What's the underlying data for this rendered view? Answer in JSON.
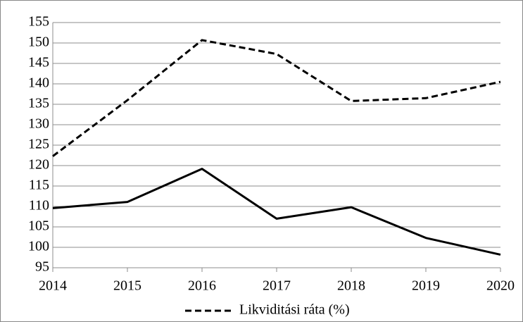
{
  "chart_data": {
    "type": "line",
    "categories": [
      "2014",
      "2015",
      "2016",
      "2017",
      "2018",
      "2019",
      "2020"
    ],
    "series": [
      {
        "name": "Likviditási ráta (%)",
        "color": "#000000",
        "dashed": true,
        "values": [
          122.3,
          136,
          150.7,
          147.3,
          135.8,
          136.5,
          140.5
        ]
      },
      {
        "color": "#000000",
        "dashed": false,
        "values": [
          109.6,
          111.1,
          119.2,
          107,
          109.8,
          102.3,
          98.2
        ]
      }
    ],
    "ylim": [
      95,
      155
    ],
    "yticks": [
      95,
      100,
      105,
      110,
      115,
      120,
      125,
      130,
      135,
      140,
      145,
      150,
      155
    ],
    "grid": true,
    "legend": "bottom"
  }
}
